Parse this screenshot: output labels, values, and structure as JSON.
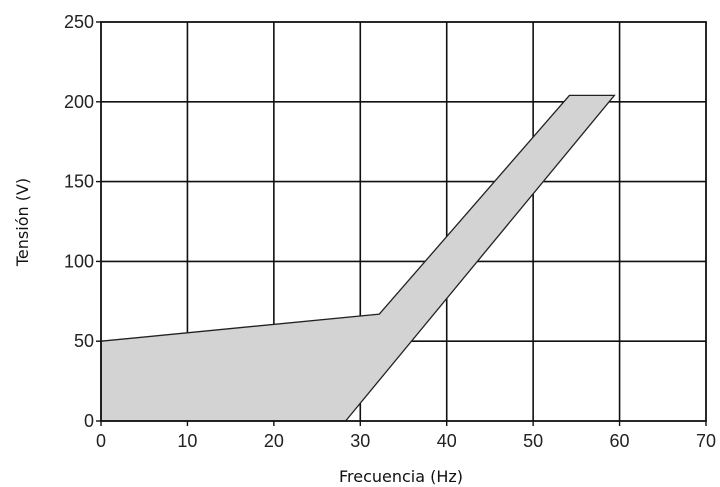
{
  "chart_data": {
    "type": "area",
    "title": "",
    "xlabel": "Frecuencia (Hz)",
    "ylabel": "Tensión (V)",
    "xlim": [
      0,
      70
    ],
    "ylim": [
      0,
      250
    ],
    "x_ticks": [
      0,
      10,
      20,
      30,
      40,
      50,
      60,
      70
    ],
    "y_ticks": [
      0,
      50,
      100,
      150,
      200,
      250
    ],
    "grid": true,
    "legend": "none",
    "fill_color": "#d3d3d3",
    "stroke_color": "#222222",
    "region": {
      "upper_boundary": [
        {
          "x": 0,
          "y": 50
        },
        {
          "x": 32.2,
          "y": 67
        },
        {
          "x": 54.2,
          "y": 204
        },
        {
          "x": 59.4,
          "y": 204
        }
      ],
      "lower_boundary": [
        {
          "x": 0,
          "y": 0
        },
        {
          "x": 28.3,
          "y": 0
        },
        {
          "x": 59.4,
          "y": 204
        }
      ]
    }
  }
}
